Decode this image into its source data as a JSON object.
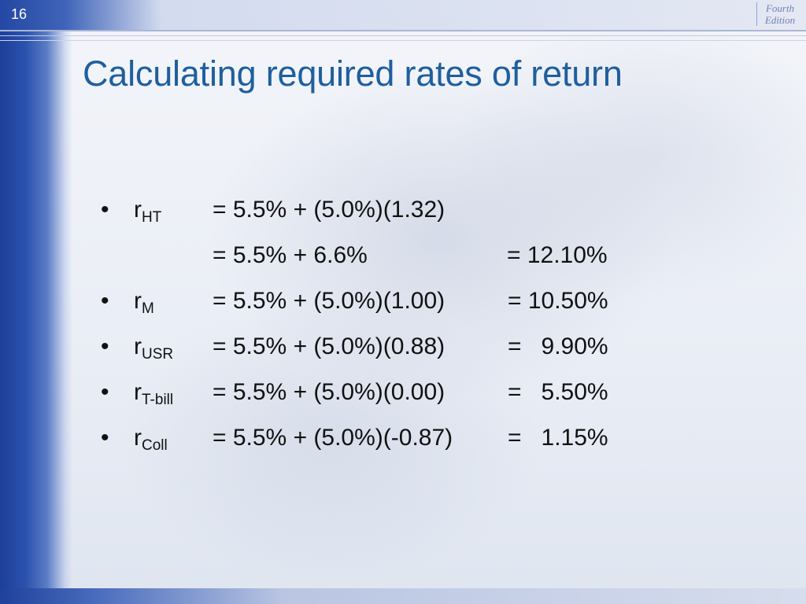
{
  "slide": {
    "number": "16",
    "edition_line1": "Fourth",
    "edition_line2": "Edition",
    "title": "Calculating required rates of return"
  },
  "rows": [
    {
      "bullet": "•",
      "var": "r",
      "sub": "HT",
      "expr": "= 5.5% + (5.0%)(1.32)",
      "result": ""
    },
    {
      "bullet": "",
      "var": "",
      "sub": "",
      "expr": "= 5.5% + 6.6%",
      "result": "= 12.10%"
    },
    {
      "bullet": "•",
      "var": "r",
      "sub": "M",
      "expr": "= 5.5% + (5.0%)(1.00)",
      "result": "= 10.50%"
    },
    {
      "bullet": "•",
      "var": "r",
      "sub": "USR",
      "expr": "= 5.5% + (5.0%)(0.88)",
      "result": "=   9.90%"
    },
    {
      "bullet": "•",
      "var": "r",
      "sub": "T-bill",
      "expr": "= 5.5% + (5.0%)(0.00)",
      "result": "=   5.50%"
    },
    {
      "bullet": "•",
      "var": "r",
      "sub": "Coll",
      "expr": "= 5.5% + (5.0%)(-0.87)",
      "result": "=   1.15%"
    }
  ]
}
